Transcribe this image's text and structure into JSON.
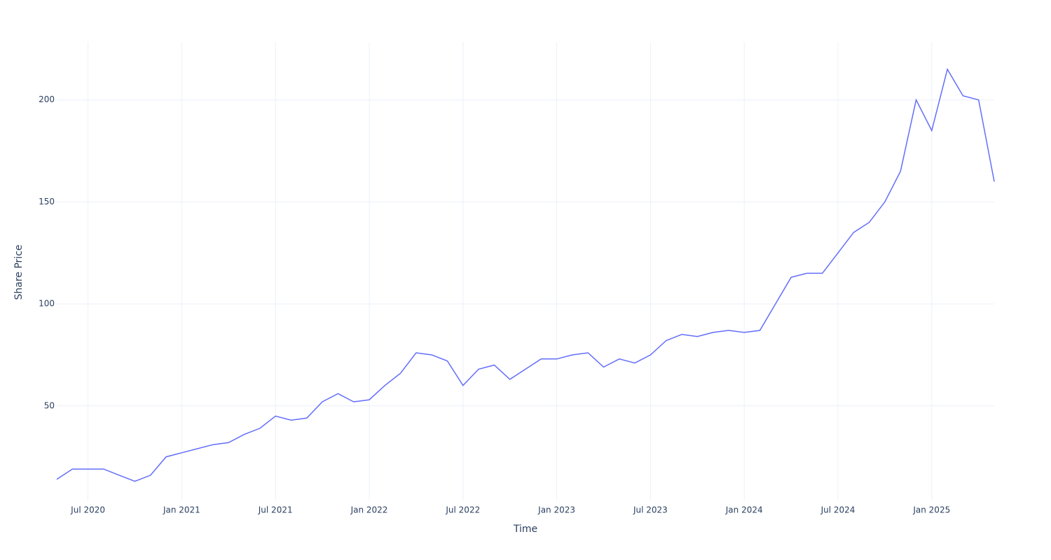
{
  "chart_data": {
    "type": "line",
    "x_label": "Time",
    "y_label": "Share Price",
    "x": [
      "2020-05",
      "2020-06",
      "2020-07",
      "2020-08",
      "2020-09",
      "2020-10",
      "2020-11",
      "2020-12",
      "2021-01",
      "2021-02",
      "2021-03",
      "2021-04",
      "2021-05",
      "2021-06",
      "2021-07",
      "2021-08",
      "2021-09",
      "2021-10",
      "2021-11",
      "2021-12",
      "2022-01",
      "2022-02",
      "2022-03",
      "2022-04",
      "2022-05",
      "2022-06",
      "2022-07",
      "2022-08",
      "2022-09",
      "2022-10",
      "2022-11",
      "2022-12",
      "2023-01",
      "2023-02",
      "2023-03",
      "2023-04",
      "2023-05",
      "2023-06",
      "2023-07",
      "2023-08",
      "2023-09",
      "2023-10",
      "2023-11",
      "2023-12",
      "2024-01",
      "2024-02",
      "2024-03",
      "2024-04",
      "2024-05",
      "2024-06",
      "2024-07",
      "2024-08",
      "2024-09",
      "2024-10",
      "2024-11",
      "2024-12",
      "2025-01",
      "2025-02",
      "2025-03",
      "2025-04",
      "2025-05"
    ],
    "series": [
      {
        "name": "Share Price",
        "color": "#636efa",
        "values": [
          14,
          19,
          19,
          19,
          16,
          13,
          16,
          25,
          27,
          29,
          31,
          32,
          36,
          39,
          45,
          43,
          44,
          52,
          56,
          52,
          53,
          60,
          66,
          76,
          75,
          72,
          60,
          68,
          70,
          63,
          68,
          73,
          73,
          75,
          76,
          69,
          73,
          71,
          75,
          82,
          85,
          84,
          86,
          87,
          86,
          87,
          100,
          113,
          115,
          115,
          125,
          135,
          140,
          150,
          165,
          200,
          185,
          215,
          202,
          200,
          160
        ]
      }
    ],
    "xlim": [
      "2020-05",
      "2025-05"
    ],
    "xticks": [
      {
        "value": "2020-07",
        "label": "Jul 2020"
      },
      {
        "value": "2021-01",
        "label": "Jan 2021"
      },
      {
        "value": "2021-07",
        "label": "Jul 2021"
      },
      {
        "value": "2022-01",
        "label": "Jan 2022"
      },
      {
        "value": "2022-07",
        "label": "Jul 2022"
      },
      {
        "value": "2023-01",
        "label": "Jan 2023"
      },
      {
        "value": "2023-07",
        "label": "Jul 2023"
      },
      {
        "value": "2024-01",
        "label": "Jan 2024"
      },
      {
        "value": "2024-07",
        "label": "Jul 2024"
      },
      {
        "value": "2025-01",
        "label": "Jan 2025"
      }
    ],
    "ylim": [
      3.6,
      228.4
    ],
    "yticks": [
      50,
      100,
      150,
      200
    ],
    "grid": true
  }
}
